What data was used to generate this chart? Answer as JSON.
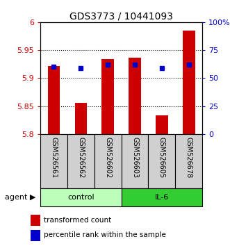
{
  "title": "GDS3773 / 10441093",
  "categories": [
    "GSM526561",
    "GSM526562",
    "GSM526602",
    "GSM526603",
    "GSM526605",
    "GSM526678"
  ],
  "bar_bottoms": [
    5.8,
    5.8,
    5.8,
    5.8,
    5.8,
    5.8
  ],
  "bar_tops": [
    5.921,
    5.856,
    5.934,
    5.936,
    5.834,
    5.985
  ],
  "percentile_values": [
    60,
    59,
    62,
    62,
    59,
    62
  ],
  "ylim": [
    5.8,
    6.0
  ],
  "ylim_right": [
    0,
    100
  ],
  "yticks_left": [
    5.8,
    5.85,
    5.9,
    5.95,
    6.0
  ],
  "yticks_right": [
    0,
    25,
    50,
    75,
    100
  ],
  "ytick_labels_left": [
    "5.8",
    "5.85",
    "5.9",
    "5.95",
    "6"
  ],
  "ytick_labels_right": [
    "0",
    "25",
    "50",
    "75",
    "100%"
  ],
  "bar_color": "#cc0000",
  "blue_color": "#0000cc",
  "control_color": "#bbffbb",
  "il6_color": "#33cc33",
  "sample_box_color": "#d0d0d0",
  "control_label": "control",
  "il6_label": "IL-6",
  "agent_label": "agent",
  "legend_bar_label": "transformed count",
  "legend_blue_label": "percentile rank within the sample",
  "bar_width": 0.45,
  "left_tick_color": "#cc0000",
  "right_tick_color": "#0000cc"
}
